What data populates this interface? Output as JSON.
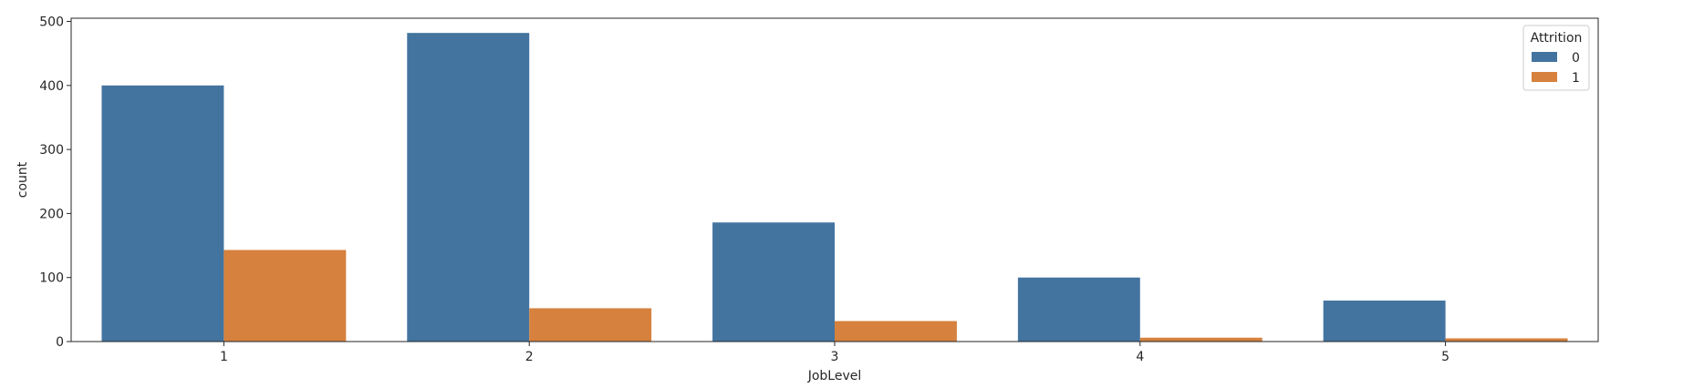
{
  "chart_data": {
    "type": "bar",
    "categories": [
      "1",
      "2",
      "3",
      "4",
      "5"
    ],
    "series": [
      {
        "name": "0",
        "values": [
          400,
          482,
          186,
          100,
          64
        ]
      },
      {
        "name": "1",
        "values": [
          143,
          52,
          32,
          6,
          5
        ]
      }
    ],
    "xlabel": "JobLevel",
    "ylabel": "count",
    "ylim": [
      0,
      505
    ],
    "yticks": [
      0,
      100,
      200,
      300,
      400,
      500
    ],
    "legend": {
      "title": "Attrition",
      "placement": "top-right"
    },
    "colors": [
      "#4374a0",
      "#d6813d"
    ],
    "grid": false
  }
}
